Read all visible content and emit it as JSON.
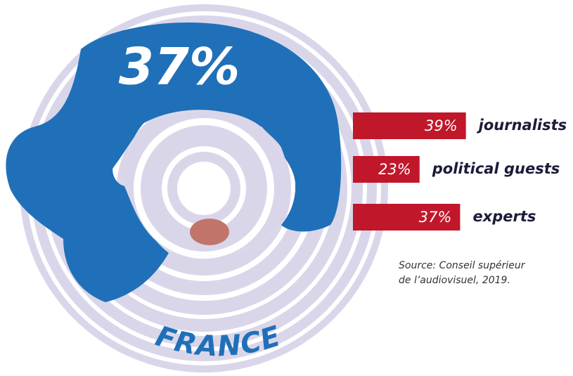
{
  "chart_data": {
    "type": "bar",
    "headline": "37%",
    "title": "FRANCE",
    "categories": [
      "journalists",
      "political guests",
      "experts"
    ],
    "values": [
      39,
      23,
      37
    ],
    "value_labels": [
      "39%",
      "23%",
      "37%"
    ],
    "color": "#c0172b",
    "xlim": [
      0,
      50
    ],
    "source": [
      "Source: Conseil supérieur",
      "de l’audiovisuel, 2019."
    ]
  }
}
